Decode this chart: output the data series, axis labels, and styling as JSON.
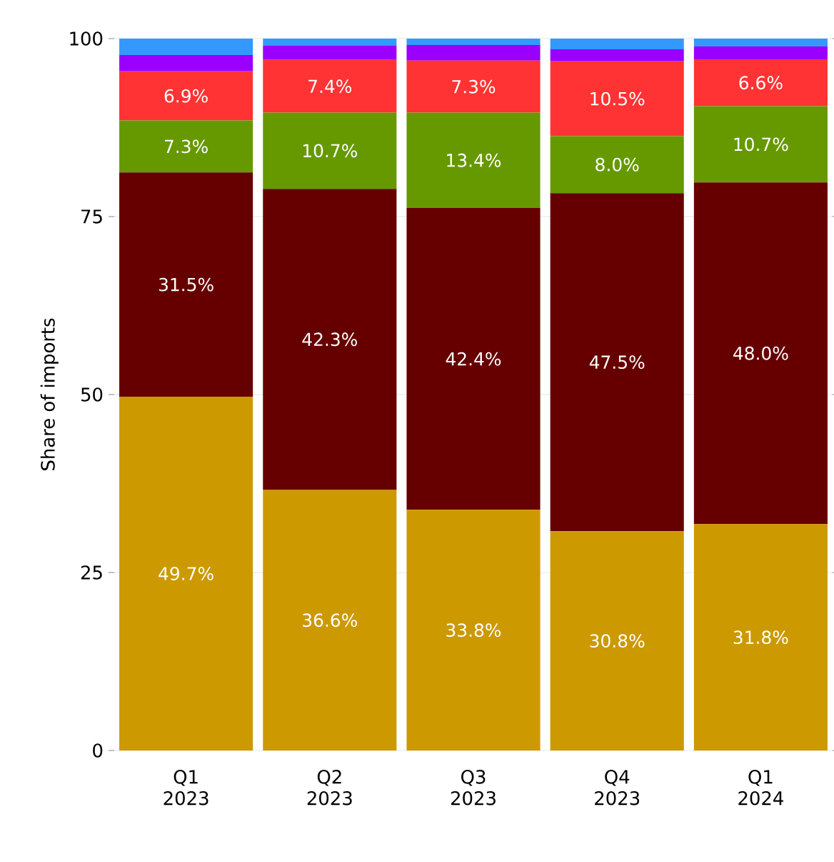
{
  "chart_data": {
    "type": "bar",
    "stacked": true,
    "ylabel": "Share of imports",
    "categories": [
      "Q1 2023",
      "Q2 2023",
      "Q3 2023",
      "Q4 2023",
      "Q1 2024"
    ],
    "ylim": [
      0,
      100
    ],
    "yticks": [
      0,
      25,
      50,
      75,
      100
    ],
    "grid": "y",
    "series": [
      {
        "color": "#cc9900",
        "values": [
          49.7,
          36.6,
          33.8,
          30.8,
          31.8
        ],
        "value_labels": [
          "49.7%",
          "36.6%",
          "33.8%",
          "30.8%",
          "31.8%"
        ]
      },
      {
        "color": "#660000",
        "values": [
          31.5,
          42.3,
          42.4,
          47.5,
          48.0
        ],
        "value_labels": [
          "31.5%",
          "42.3%",
          "42.4%",
          "47.5%",
          "48.0%"
        ]
      },
      {
        "color": "#669900",
        "values": [
          7.3,
          10.7,
          13.4,
          8.0,
          10.7
        ],
        "value_labels": [
          "7.3%",
          "10.7%",
          "13.4%",
          "8.0%",
          "10.7%"
        ]
      },
      {
        "color": "#ff3333",
        "values": [
          6.9,
          7.4,
          7.3,
          10.5,
          6.6
        ],
        "value_labels": [
          "6.9%",
          "7.4%",
          "7.3%",
          "10.5%",
          "6.6%"
        ]
      },
      {
        "color": "#9900ff",
        "values": [
          2.3,
          2.0,
          2.2,
          1.7,
          1.8
        ]
      },
      {
        "color": "#3399ff",
        "values": [
          2.3,
          1.0,
          0.9,
          1.5,
          1.1
        ]
      }
    ]
  }
}
